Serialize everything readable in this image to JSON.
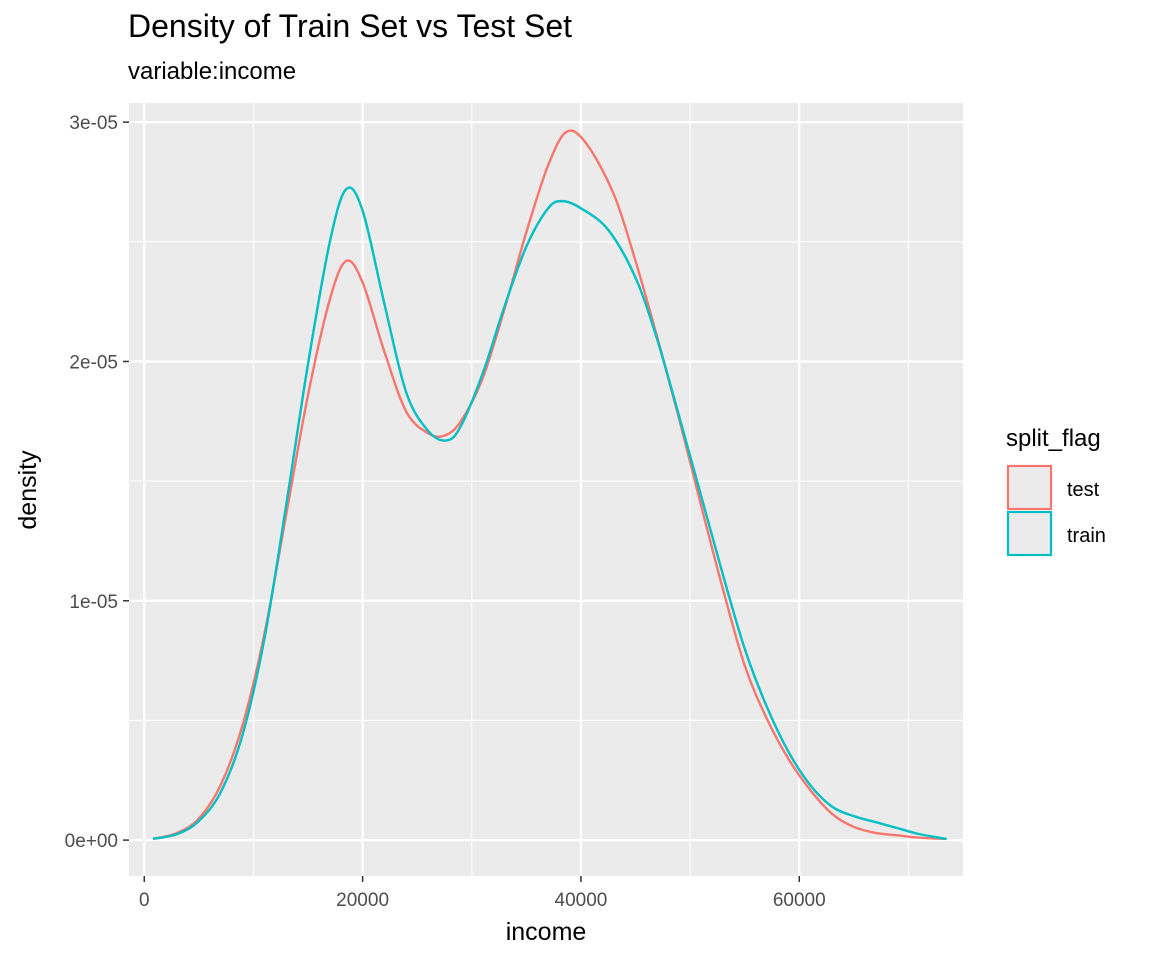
{
  "chart_data": {
    "type": "line",
    "title": "Density of Train Set vs Test Set",
    "subtitle": "variable:income",
    "xlabel": "income",
    "ylabel": "density",
    "xlim": [
      -1400,
      75000
    ],
    "ylim": [
      -1.5e-06,
      3.08e-05
    ],
    "x_ticks": [
      {
        "value": 0,
        "label": "0"
      },
      {
        "value": 20000,
        "label": "20000"
      },
      {
        "value": 40000,
        "label": "40000"
      },
      {
        "value": 60000,
        "label": "60000"
      }
    ],
    "y_ticks": [
      {
        "value": 0,
        "label": "0e+00"
      },
      {
        "value": 1e-05,
        "label": "1e-05"
      },
      {
        "value": 2e-05,
        "label": "2e-05"
      },
      {
        "value": 3e-05,
        "label": "3e-05"
      }
    ],
    "grid": true,
    "legend": {
      "title": "split_flag",
      "position": "right"
    },
    "series": [
      {
        "name": "test",
        "color": "#F8766D",
        "points": [
          [
            800,
            5e-08
          ],
          [
            3000,
            3e-07
          ],
          [
            5000,
            9e-07
          ],
          [
            7000,
            2.3e-06
          ],
          [
            9000,
            4.8e-06
          ],
          [
            11000,
            8.6e-06
          ],
          [
            13000,
            1.36e-05
          ],
          [
            15000,
            1.86e-05
          ],
          [
            17000,
            2.26e-05
          ],
          [
            18500,
            2.42e-05
          ],
          [
            20000,
            2.33e-05
          ],
          [
            22000,
            2.04e-05
          ],
          [
            24000,
            1.79e-05
          ],
          [
            26000,
            1.7e-05
          ],
          [
            27500,
            1.69e-05
          ],
          [
            29000,
            1.75e-05
          ],
          [
            31000,
            1.93e-05
          ],
          [
            33000,
            2.22e-05
          ],
          [
            35000,
            2.54e-05
          ],
          [
            37000,
            2.82e-05
          ],
          [
            38700,
            2.96e-05
          ],
          [
            40500,
            2.91e-05
          ],
          [
            43000,
            2.7e-05
          ],
          [
            45000,
            2.42e-05
          ],
          [
            47000,
            2.1e-05
          ],
          [
            49000,
            1.76e-05
          ],
          [
            51000,
            1.4e-05
          ],
          [
            53000,
            1.05e-05
          ],
          [
            55000,
            7.3e-06
          ],
          [
            57000,
            5.1e-06
          ],
          [
            59000,
            3.4e-06
          ],
          [
            61000,
            2.1e-06
          ],
          [
            63000,
            1.1e-06
          ],
          [
            65000,
            5.5e-07
          ],
          [
            67000,
            3e-07
          ],
          [
            69000,
            2e-07
          ],
          [
            71000,
            1e-07
          ],
          [
            73500,
            5e-08
          ]
        ]
      },
      {
        "name": "train",
        "color": "#00BFC4",
        "points": [
          [
            800,
            5e-08
          ],
          [
            3000,
            2.5e-07
          ],
          [
            5000,
            8e-07
          ],
          [
            7000,
            2e-06
          ],
          [
            9000,
            4.4e-06
          ],
          [
            11000,
            8.4e-06
          ],
          [
            13000,
            1.4e-05
          ],
          [
            15000,
            1.99e-05
          ],
          [
            17000,
            2.5e-05
          ],
          [
            18500,
            2.72e-05
          ],
          [
            20000,
            2.63e-05
          ],
          [
            22000,
            2.24e-05
          ],
          [
            24000,
            1.87e-05
          ],
          [
            26000,
            1.71e-05
          ],
          [
            27700,
            1.67e-05
          ],
          [
            29000,
            1.73e-05
          ],
          [
            31000,
            1.95e-05
          ],
          [
            33000,
            2.23e-05
          ],
          [
            35000,
            2.48e-05
          ],
          [
            37000,
            2.64e-05
          ],
          [
            38300,
            2.67e-05
          ],
          [
            40000,
            2.64e-05
          ],
          [
            42500,
            2.55e-05
          ],
          [
            45000,
            2.35e-05
          ],
          [
            47000,
            2.09e-05
          ],
          [
            49000,
            1.77e-05
          ],
          [
            51000,
            1.44e-05
          ],
          [
            53000,
            1.11e-05
          ],
          [
            55000,
            8e-06
          ],
          [
            57000,
            5.6e-06
          ],
          [
            59000,
            3.7e-06
          ],
          [
            61000,
            2.3e-06
          ],
          [
            63000,
            1.4e-06
          ],
          [
            65000,
            1e-06
          ],
          [
            67000,
            7.5e-07
          ],
          [
            69000,
            5e-07
          ],
          [
            71000,
            2.5e-07
          ],
          [
            73500,
            5e-08
          ]
        ]
      }
    ]
  },
  "colors": {
    "panel_background": "#EBEBEB",
    "grid_line": "#FFFFFF",
    "tick_text": "#4D4D4D",
    "test": "#F8766D",
    "train": "#00BFC4"
  }
}
